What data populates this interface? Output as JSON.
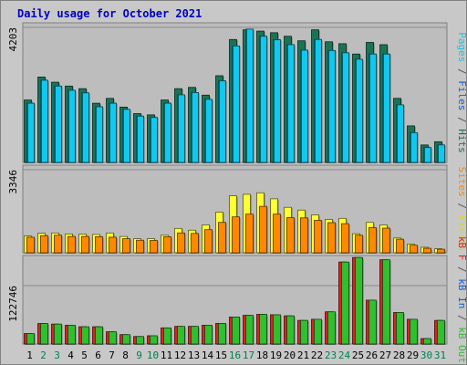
{
  "title": "Daily usage for October 2021",
  "colors": {
    "background": "#c8c8c8",
    "panel": "#bdbdbd",
    "hits": "#1b7355",
    "files": "#11c8ee",
    "pages": "#11c8ee",
    "visits": "#ffff33",
    "sites": "#ff8800",
    "kbin": "#2fbf2f",
    "kbout": "#2fbf2f",
    "kbf": "#e02020",
    "weekend_day": "#00804f",
    "weekday": "#000000",
    "title": "#0000c0"
  },
  "chart_data": [
    {
      "type": "bar",
      "name": "hits-files-panel",
      "max_label": "4203",
      "ylim": [
        0,
        4203
      ],
      "vertical_label": [
        {
          "text": "Pages",
          "color": "#11c8ee"
        },
        {
          "text": " / ",
          "color": "#555555"
        },
        {
          "text": "Files",
          "color": "#1060d8"
        },
        {
          "text": " / ",
          "color": "#555555"
        },
        {
          "text": "Hits",
          "color": "#1b7355"
        }
      ],
      "series": [
        {
          "key": "hits",
          "values": [
            1930,
            2640,
            2480,
            2360,
            2280,
            1830,
            1980,
            1710,
            1510,
            1470,
            1930,
            2280,
            2320,
            2080,
            2680,
            3800,
            4100,
            4060,
            4010,
            3900,
            3760,
            4100,
            3730,
            3670,
            3350,
            3710,
            3640,
            1980,
            1130,
            540,
            640
          ]
        },
        {
          "key": "files",
          "values": [
            1830,
            2540,
            2360,
            2230,
            2150,
            1720,
            1830,
            1640,
            1430,
            1390,
            1830,
            2090,
            2160,
            1950,
            2520,
            3600,
            4120,
            3900,
            3790,
            3640,
            3470,
            3800,
            3460,
            3390,
            3190,
            3350,
            3350,
            1780,
            920,
            460,
            540
          ]
        },
        {
          "key": "pages",
          "values": [
            1830,
            2540,
            2360,
            2230,
            2150,
            1720,
            1830,
            1640,
            1430,
            1390,
            1830,
            2090,
            2160,
            1950,
            2520,
            3600,
            4120,
            3900,
            3790,
            3640,
            3470,
            3800,
            3460,
            3390,
            3190,
            3350,
            3350,
            1780,
            920,
            460,
            540
          ]
        }
      ]
    },
    {
      "type": "bar",
      "name": "visits-sites-panel",
      "max_label": "3346",
      "ylim": [
        0,
        3346
      ],
      "vertical_label": [
        {
          "text": "Sites",
          "color": "#ff8800"
        },
        {
          "text": " / ",
          "color": "#555555"
        },
        {
          "text": "Visits",
          "color": "#dddd00"
        }
      ],
      "series": [
        {
          "key": "visits",
          "values": [
            670,
            780,
            790,
            750,
            740,
            730,
            790,
            650,
            560,
            560,
            700,
            970,
            900,
            1110,
            1620,
            2270,
            2330,
            2390,
            2150,
            1810,
            1700,
            1510,
            1330,
            1370,
            760,
            1210,
            1110,
            590,
            350,
            220,
            160
          ]
        },
        {
          "key": "sites",
          "values": [
            620,
            680,
            700,
            650,
            650,
            640,
            620,
            560,
            500,
            490,
            640,
            790,
            770,
            920,
            1210,
            1430,
            1540,
            1850,
            1540,
            1400,
            1390,
            1290,
            1200,
            1160,
            700,
            1000,
            980,
            540,
            300,
            180,
            140
          ]
        }
      ]
    },
    {
      "type": "bar",
      "name": "kbytes-panel",
      "max_label": "122746",
      "ylim": [
        0,
        163660
      ],
      "vertical_label": [
        {
          "text": "kB F",
          "color": "#e02020"
        },
        {
          "text": " / ",
          "color": "#555555"
        },
        {
          "text": "kB In",
          "color": "#1060d8"
        },
        {
          "text": " / ",
          "color": "#555555"
        },
        {
          "text": "kB Out",
          "color": "#2fbf2f"
        }
      ],
      "series": [
        {
          "key": "kbf",
          "values": [
            20200,
            39500,
            38400,
            36200,
            33300,
            33300,
            23600,
            18100,
            14500,
            15900,
            31100,
            34000,
            34000,
            36200,
            39800,
            52100,
            55300,
            57200,
            56400,
            54300,
            45500,
            47700,
            62100,
            158100,
            166800,
            84600,
            162500,
            60800,
            47700,
            10500,
            45500
          ]
        },
        {
          "key": "kbout",
          "values": [
            20200,
            39500,
            38400,
            36200,
            33300,
            33300,
            23600,
            18100,
            14500,
            15900,
            31100,
            34000,
            34000,
            36200,
            39800,
            52100,
            55300,
            57200,
            56400,
            54300,
            45500,
            47700,
            62100,
            158100,
            166800,
            84600,
            162500,
            60800,
            47700,
            10500,
            45500
          ]
        }
      ]
    }
  ],
  "days": [
    {
      "label": "1",
      "weekend": false
    },
    {
      "label": "2",
      "weekend": true
    },
    {
      "label": "3",
      "weekend": true
    },
    {
      "label": "4",
      "weekend": false
    },
    {
      "label": "5",
      "weekend": false
    },
    {
      "label": "6",
      "weekend": false
    },
    {
      "label": "7",
      "weekend": false
    },
    {
      "label": "8",
      "weekend": false
    },
    {
      "label": "9",
      "weekend": true
    },
    {
      "label": "10",
      "weekend": true
    },
    {
      "label": "11",
      "weekend": false
    },
    {
      "label": "12",
      "weekend": false
    },
    {
      "label": "13",
      "weekend": false
    },
    {
      "label": "14",
      "weekend": false
    },
    {
      "label": "15",
      "weekend": false
    },
    {
      "label": "16",
      "weekend": true
    },
    {
      "label": "17",
      "weekend": true
    },
    {
      "label": "18",
      "weekend": false
    },
    {
      "label": "19",
      "weekend": false
    },
    {
      "label": "20",
      "weekend": false
    },
    {
      "label": "21",
      "weekend": false
    },
    {
      "label": "22",
      "weekend": false
    },
    {
      "label": "23",
      "weekend": true
    },
    {
      "label": "24",
      "weekend": true
    },
    {
      "label": "25",
      "weekend": false
    },
    {
      "label": "26",
      "weekend": false
    },
    {
      "label": "27",
      "weekend": false
    },
    {
      "label": "28",
      "weekend": false
    },
    {
      "label": "29",
      "weekend": false
    },
    {
      "label": "30",
      "weekend": true
    },
    {
      "label": "31",
      "weekend": true
    }
  ]
}
